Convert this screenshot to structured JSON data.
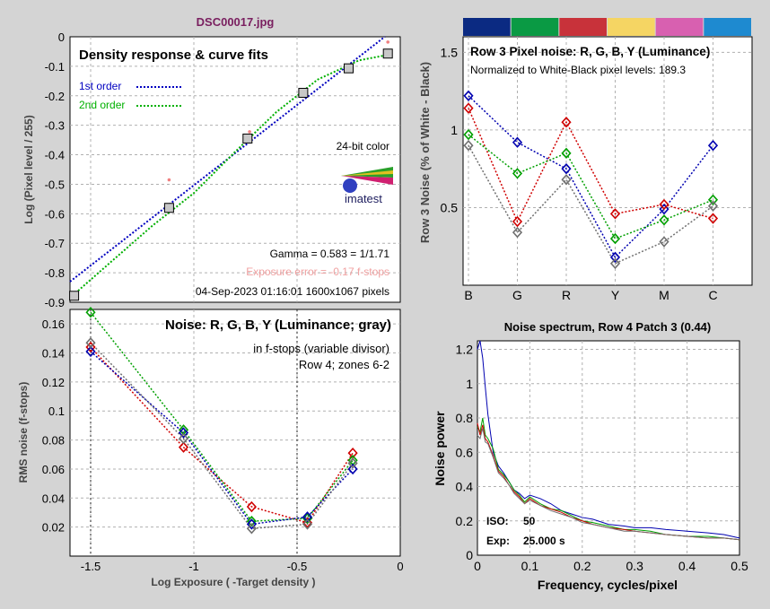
{
  "window": {
    "title": "DSC00017.jpg"
  },
  "colors": {
    "blue": "#0000b0",
    "green": "#00a000",
    "red": "#d00000",
    "gray": "#707070",
    "title": "#7a2060",
    "exposure_error": "#f0a0a0",
    "grid": "#b0b0b0"
  },
  "color_strip": [
    "#0b2a82",
    "#0a9a44",
    "#c8323a",
    "#f5d563",
    "#d860b0",
    "#1e8ad0"
  ],
  "density": {
    "title": "Density response & curve fits",
    "ylabel": "Log (Pixel level / 255)",
    "legend": [
      {
        "name": "1st order",
        "color": "#0000c0"
      },
      {
        "name": "2nd order",
        "color": "#00b000"
      }
    ],
    "color_mode": "24-bit color",
    "logo_text": "imatest",
    "gamma_text": "Gamma = 0.583 = 1/1.71",
    "exposure_error_text": "Exposure error = -0.17 f-stops",
    "date_text": "04-Sep-2023 01:16:01   1600x1067 pixels"
  },
  "noise": {
    "title": "Noise: R, G, B, Y (Luminance; gray)",
    "note1": "in f-stops (variable divisor)",
    "note2": "Row 4; zones 6-2",
    "ylabel": "RMS noise (f-stops)",
    "xlabel": "Log Exposure ( -Target density )"
  },
  "pixel_noise": {
    "title": "Row 3 Pixel noise: R, G, B, Y (Luminance)",
    "note": "Normalized to White-Black pixel levels: 189.3",
    "ylabel": "Row 3 Noise (% of White - Black)"
  },
  "spectrum": {
    "title": "Noise spectrum, Row 4 Patch 3 (0.44)",
    "ylabel": "Noise power",
    "xlabel": "Frequency, cycles/pixel",
    "iso_label": "ISO:",
    "iso_value": "50",
    "exp_label": "Exp:",
    "exp_value": "25.000 s"
  },
  "chart_data": [
    {
      "type": "scatter",
      "title": "Density response & curve fits",
      "ylabel": "Log (Pixel level / 255)",
      "xlim": [
        -1.6,
        0
      ],
      "ylim": [
        -0.9,
        0
      ],
      "yticks": [
        0,
        -0.1,
        -0.2,
        -0.3,
        -0.4,
        -0.5,
        -0.6,
        -0.7,
        -0.8,
        -0.9
      ],
      "measured": [
        {
          "x": -1.58,
          "y": -0.878
        },
        {
          "x": -1.12,
          "y": -0.58
        },
        {
          "x": -0.74,
          "y": -0.345
        },
        {
          "x": -0.47,
          "y": -0.19
        },
        {
          "x": -0.25,
          "y": -0.107
        },
        {
          "x": -0.06,
          "y": -0.057
        }
      ],
      "pink_points": [
        {
          "x": -1.12,
          "y": -0.485
        },
        {
          "x": -0.73,
          "y": -0.322
        },
        {
          "x": -0.06,
          "y": -0.018
        }
      ],
      "series": [
        {
          "name": "1st order",
          "line": [
            [
              -1.6,
              -0.83
            ],
            [
              -0.075,
              0
            ]
          ]
        },
        {
          "name": "2nd order",
          "line": [
            [
              -1.6,
              -0.885
            ],
            [
              -1.38,
              -0.75
            ],
            [
              -1.2,
              -0.64
            ],
            [
              -1.0,
              -0.53
            ],
            [
              -0.8,
              -0.39
            ],
            [
              -0.6,
              -0.255
            ],
            [
              -0.4,
              -0.145
            ],
            [
              -0.2,
              -0.08
            ],
            [
              -0.05,
              -0.06
            ]
          ]
        }
      ]
    },
    {
      "type": "line",
      "title": "Noise: R, G, B, Y (Luminance; gray)",
      "xlabel": "Log Exposure ( -Target density )",
      "ylabel": "RMS noise (f-stops)",
      "xlim": [
        -1.6,
        0
      ],
      "ylim": [
        0,
        0.17
      ],
      "xticks": [
        -1.5,
        -1,
        -0.5,
        0
      ],
      "yticks": [
        0.02,
        0.04,
        0.06,
        0.08,
        0.1,
        0.12,
        0.14,
        0.16
      ],
      "x": [
        -1.5,
        -1.05,
        -0.72,
        -0.45,
        -0.23
      ],
      "series": [
        {
          "color": "red",
          "values": [
            0.144,
            0.075,
            0.034,
            0.023,
            0.071
          ]
        },
        {
          "color": "green",
          "values": [
            0.168,
            0.087,
            0.024,
            0.026,
            0.066
          ]
        },
        {
          "color": "blue",
          "values": [
            0.141,
            0.085,
            0.022,
            0.027,
            0.06
          ]
        },
        {
          "color": "gray",
          "values": [
            0.147,
            0.081,
            0.019,
            0.022,
            0.064
          ]
        }
      ],
      "vlines": [
        -1.5,
        -0.5
      ]
    },
    {
      "type": "line",
      "title": "Row 3 Pixel noise: R, G, B, Y (Luminance)",
      "ylabel": "Row 3 Noise (% of White - Black)",
      "categories": [
        "B",
        "G",
        "R",
        "Y",
        "M",
        "C"
      ],
      "ylim": [
        0,
        1.6
      ],
      "yticks": [
        0.5,
        1,
        1.5
      ],
      "series": [
        {
          "color": "blue",
          "values": [
            1.22,
            0.92,
            0.75,
            0.18,
            0.49,
            0.9
          ]
        },
        {
          "color": "red",
          "values": [
            1.14,
            0.41,
            1.05,
            0.46,
            0.52,
            0.43
          ]
        },
        {
          "color": "green",
          "values": [
            0.97,
            0.72,
            0.85,
            0.3,
            0.42,
            0.55
          ]
        },
        {
          "color": "gray",
          "values": [
            0.9,
            0.34,
            0.68,
            0.14,
            0.28,
            0.51
          ]
        }
      ]
    },
    {
      "type": "line",
      "title": "Noise spectrum, Row 4 Patch 3 (0.44)",
      "xlabel": "Frequency, cycles/pixel",
      "ylabel": "Noise power",
      "xlim": [
        0,
        0.5
      ],
      "ylim": [
        0,
        1.25
      ],
      "xticks": [
        0,
        0.1,
        0.2,
        0.3,
        0.4,
        0.5
      ],
      "yticks": [
        0,
        0.2,
        0.4,
        0.6,
        0.8,
        1,
        1.2
      ],
      "x": [
        0.0,
        0.005,
        0.01,
        0.015,
        0.02,
        0.03,
        0.04,
        0.05,
        0.06,
        0.07,
        0.08,
        0.09,
        0.1,
        0.12,
        0.14,
        0.16,
        0.18,
        0.2,
        0.22,
        0.25,
        0.28,
        0.3,
        0.33,
        0.36,
        0.4,
        0.44,
        0.47,
        0.5
      ],
      "series": [
        {
          "color": "blue",
          "values": [
            1.2,
            1.25,
            1.15,
            0.98,
            0.82,
            0.6,
            0.52,
            0.48,
            0.43,
            0.38,
            0.36,
            0.33,
            0.35,
            0.33,
            0.3,
            0.26,
            0.24,
            0.22,
            0.21,
            0.18,
            0.17,
            0.16,
            0.16,
            0.15,
            0.14,
            0.13,
            0.12,
            0.1
          ]
        },
        {
          "color": "green",
          "values": [
            0.75,
            0.72,
            0.8,
            0.7,
            0.68,
            0.62,
            0.5,
            0.47,
            0.43,
            0.38,
            0.35,
            0.31,
            0.34,
            0.3,
            0.27,
            0.26,
            0.23,
            0.2,
            0.19,
            0.17,
            0.15,
            0.15,
            0.14,
            0.12,
            0.11,
            0.11,
            0.1,
            0.09
          ]
        },
        {
          "color": "red",
          "values": [
            0.77,
            0.7,
            0.76,
            0.68,
            0.66,
            0.58,
            0.49,
            0.46,
            0.41,
            0.37,
            0.34,
            0.3,
            0.33,
            0.29,
            0.27,
            0.25,
            0.22,
            0.2,
            0.18,
            0.16,
            0.15,
            0.14,
            0.13,
            0.12,
            0.11,
            0.1,
            0.1,
            0.09
          ]
        },
        {
          "color": "gray",
          "values": [
            0.7,
            0.68,
            0.74,
            0.66,
            0.65,
            0.57,
            0.48,
            0.45,
            0.41,
            0.36,
            0.33,
            0.3,
            0.32,
            0.29,
            0.26,
            0.24,
            0.22,
            0.19,
            0.18,
            0.16,
            0.14,
            0.14,
            0.13,
            0.12,
            0.11,
            0.1,
            0.1,
            0.09
          ]
        }
      ]
    }
  ]
}
